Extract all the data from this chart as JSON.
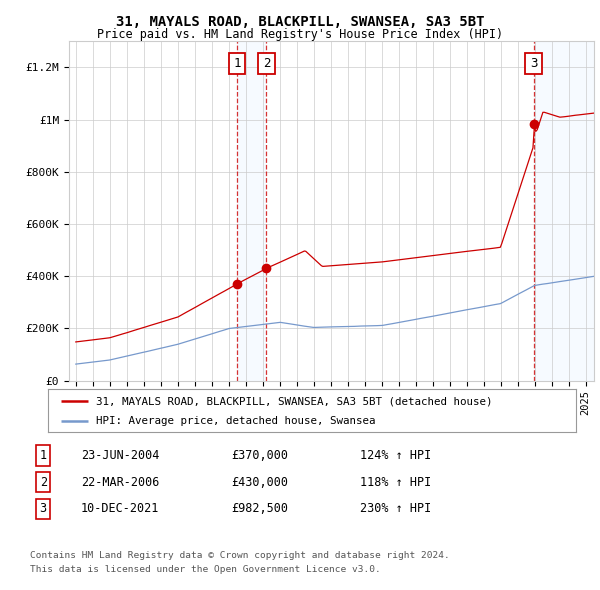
{
  "title1": "31, MAYALS ROAD, BLACKPILL, SWANSEA, SA3 5BT",
  "title2": "Price paid vs. HM Land Registry's House Price Index (HPI)",
  "ylabel_ticks": [
    "£0",
    "£200K",
    "£400K",
    "£600K",
    "£800K",
    "£1M",
    "£1.2M"
  ],
  "ylim": [
    0,
    1300000
  ],
  "yticks": [
    0,
    200000,
    400000,
    600000,
    800000,
    1000000,
    1200000
  ],
  "sale1_date": 2004.48,
  "sale1_price": 370000,
  "sale1_label": "1",
  "sale2_date": 2006.22,
  "sale2_price": 430000,
  "sale2_label": "2",
  "sale3_date": 2021.94,
  "sale3_price": 982500,
  "sale3_label": "3",
  "legend_line1": "31, MAYALS ROAD, BLACKPILL, SWANSEA, SA3 5BT (detached house)",
  "legend_line2": "HPI: Average price, detached house, Swansea",
  "table_rows": [
    [
      "1",
      "23-JUN-2004",
      "£370,000",
      "124% ↑ HPI"
    ],
    [
      "2",
      "22-MAR-2006",
      "£430,000",
      "118% ↑ HPI"
    ],
    [
      "3",
      "10-DEC-2021",
      "£982,500",
      "230% ↑ HPI"
    ]
  ],
  "footnote1": "Contains HM Land Registry data © Crown copyright and database right 2024.",
  "footnote2": "This data is licensed under the Open Government Licence v3.0.",
  "red_color": "#cc0000",
  "blue_color": "#7799cc",
  "shade_color": "#ddeeff",
  "background": "#ffffff",
  "grid_color": "#cccccc"
}
